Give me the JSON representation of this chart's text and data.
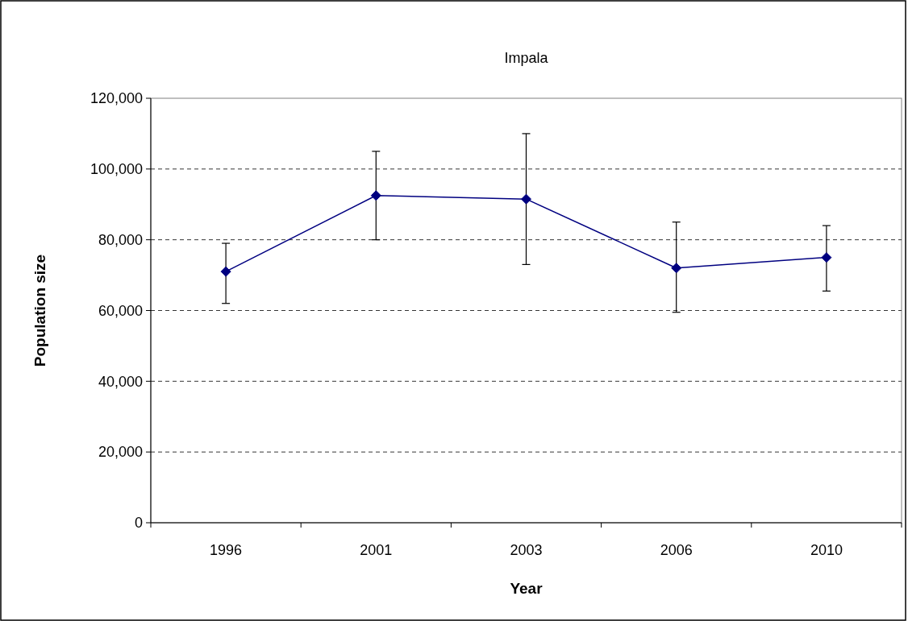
{
  "chart_data": {
    "type": "line",
    "title": "Impala",
    "xlabel": "Year",
    "ylabel": "Population size",
    "categories": [
      "1996",
      "2001",
      "2003",
      "2006",
      "2010"
    ],
    "series": [
      {
        "color": "#000080",
        "values": [
          71000,
          92500,
          91500,
          72000,
          75000
        ],
        "errors": [
          [
            62000,
            79000
          ],
          [
            80000,
            105000
          ],
          [
            73000,
            110000
          ],
          [
            59500,
            85000
          ],
          [
            65500,
            84000
          ]
        ]
      }
    ],
    "ylim": [
      0,
      120000
    ],
    "yticks": [
      {
        "value": 0,
        "label": "0"
      },
      {
        "value": 20000,
        "label": "20,000"
      },
      {
        "value": 40000,
        "label": "40,000"
      },
      {
        "value": 60000,
        "label": "60,000"
      },
      {
        "value": 80000,
        "label": "80,000"
      },
      {
        "value": 100000,
        "label": "100,000"
      },
      {
        "value": 120000,
        "label": "120,000"
      }
    ],
    "grid": "y",
    "marker": "diamond",
    "line_style": "solid"
  }
}
